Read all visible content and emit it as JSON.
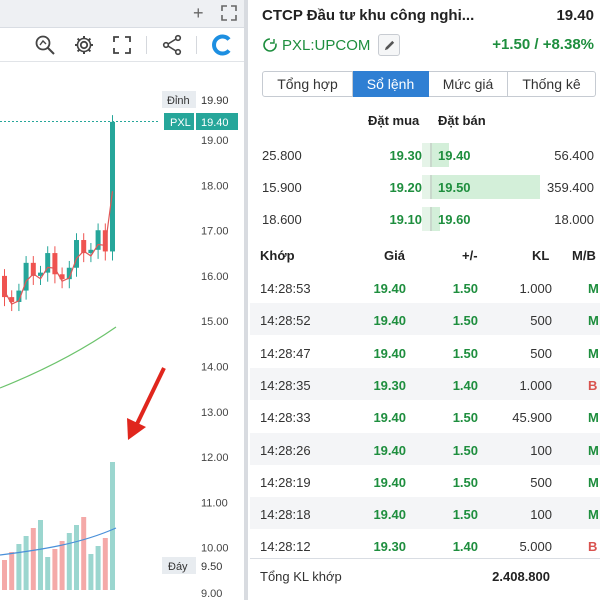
{
  "stock": {
    "title": "CTCP Đầu tư khu công nghi...",
    "price": "19.40",
    "symbol": "PXL:UPCOM",
    "change": "+1.50 / +8.38%"
  },
  "chart": {
    "ceiling_label": "Đỉnh",
    "ceiling_value": "19.90",
    "symbol_tag": "PXL",
    "symbol_value": "19.40",
    "floor_label": "Đáy",
    "floor_value": "9.50",
    "price_axis": [
      "19.00",
      "18.00",
      "17.00",
      "16.00",
      "15.00",
      "14.00",
      "13.00",
      "12.00",
      "11.00",
      "10.00",
      "9.00"
    ]
  },
  "tabs": [
    {
      "label": "Tổng hợp"
    },
    {
      "label": "Sổ lệnh"
    },
    {
      "label": "Mức giá"
    },
    {
      "label": "Thống kê"
    }
  ],
  "order_book": {
    "bid_header": "Đặt mua",
    "ask_header": "Đặt bán",
    "rows": [
      {
        "bid_vol": "25.800",
        "bid_price": "19.30",
        "ask_price": "19.40",
        "ask_vol": "56.400",
        "bid_fill": 0.07,
        "ask_fill": 0.16
      },
      {
        "bid_vol": "15.900",
        "bid_price": "19.20",
        "ask_price": "19.50",
        "ask_vol": "359.400",
        "bid_fill": 0.04,
        "ask_fill": 1.0
      },
      {
        "bid_vol": "18.600",
        "bid_price": "19.10",
        "ask_price": "19.60",
        "ask_vol": "18.000",
        "bid_fill": 0.05,
        "ask_fill": 0.05
      }
    ]
  },
  "trades": {
    "headers": {
      "time": "Khớp",
      "price": "Giá",
      "change": "+/-",
      "volume": "KL",
      "side": "M/B"
    },
    "rows": [
      {
        "time": "14:28:53",
        "price": "19.40",
        "change": "1.50",
        "volume": "1.000",
        "side": "M"
      },
      {
        "time": "14:28:52",
        "price": "19.40",
        "change": "1.50",
        "volume": "500",
        "side": "M"
      },
      {
        "time": "14:28:47",
        "price": "19.40",
        "change": "1.50",
        "volume": "500",
        "side": "M"
      },
      {
        "time": "14:28:35",
        "price": "19.30",
        "change": "1.40",
        "volume": "1.000",
        "side": "B"
      },
      {
        "time": "14:28:33",
        "price": "19.40",
        "change": "1.50",
        "volume": "45.900",
        "side": "M"
      },
      {
        "time": "14:28:26",
        "price": "19.40",
        "change": "1.50",
        "volume": "100",
        "side": "M"
      },
      {
        "time": "14:28:19",
        "price": "19.40",
        "change": "1.50",
        "volume": "500",
        "side": "M"
      },
      {
        "time": "14:28:18",
        "price": "19.40",
        "change": "1.50",
        "volume": "100",
        "side": "M"
      },
      {
        "time": "14:28:12",
        "price": "19.30",
        "change": "1.40",
        "volume": "5.000",
        "side": "B"
      }
    ],
    "total_label": "Tổng KL khớp",
    "total_value": "2.408.800"
  },
  "colors": {
    "up": "#1e8e3e",
    "down": "#d9534f",
    "accent": "#2f7fd3",
    "candle_up": "#26a69a",
    "candle_down": "#ef5350",
    "arrow": "#e0261d"
  },
  "icons": [
    "plus-icon",
    "expand-icon",
    "zoom-icon",
    "gear-icon",
    "fullscreen-icon",
    "share-icon",
    "brand-logo-icon",
    "pencil-icon",
    "symbol-link-icon"
  ]
}
